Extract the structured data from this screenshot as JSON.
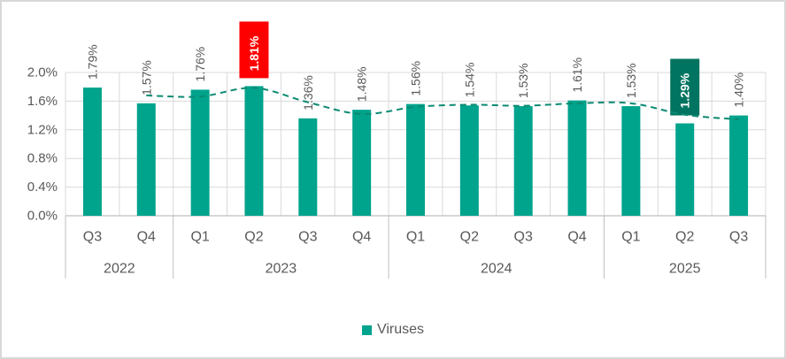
{
  "window": {
    "background": "#FFFFFF",
    "border_color": "#D8D8D8"
  },
  "chart_data": {
    "type": "bar",
    "title": "",
    "quarters": [
      "Q3",
      "Q4",
      "Q1",
      "Q2",
      "Q3",
      "Q4",
      "Q1",
      "Q2",
      "Q3",
      "Q4",
      "Q1",
      "Q2",
      "Q3"
    ],
    "years": [
      {
        "label": "2022",
        "quarters": 2
      },
      {
        "label": "2023",
        "quarters": 4
      },
      {
        "label": "2024",
        "quarters": 4
      },
      {
        "label": "2025",
        "quarters": 3
      }
    ],
    "series": [
      {
        "name": "Viruses",
        "color": "#00A38C",
        "values": [
          1.79,
          1.57,
          1.76,
          1.81,
          1.36,
          1.48,
          1.56,
          1.54,
          1.53,
          1.61,
          1.53,
          1.29,
          1.4
        ]
      }
    ],
    "data_labels": [
      "1.79%",
      "1.57%",
      "1.76%",
      "1.81%",
      "1.36%",
      "1.48%",
      "1.56%",
      "1.54%",
      "1.53%",
      "1.61%",
      "1.53%",
      "1.29%",
      "1.40%"
    ],
    "highlights": {
      "3": {
        "background": "#FF0000",
        "text_color": "#FFFFFF"
      },
      "11": {
        "background": "#007460",
        "text_color": "#FFFFFF"
      }
    },
    "trendline": {
      "type": "moving-average-2q",
      "style": "dashed",
      "color": "#0B8A72",
      "start_index": 1,
      "points": [
        1.68,
        1.665,
        1.785,
        1.585,
        1.42,
        1.52,
        1.55,
        1.535,
        1.57,
        1.57,
        1.41,
        1.345
      ]
    },
    "y_axis": {
      "min": 0,
      "max": 2,
      "step": 0.4,
      "tick_labels": [
        "0.0%",
        "0.4%",
        "0.8%",
        "1.2%",
        "1.6%",
        "2.0%"
      ]
    },
    "legend": [
      {
        "label": "Viruses",
        "swatch_color": "#00A38C"
      }
    ],
    "colors": {
      "bar": "#00A38C",
      "gridline": "#D9D9D9",
      "axis_line": "#BFBFBF",
      "label_text": "#595959"
    }
  }
}
